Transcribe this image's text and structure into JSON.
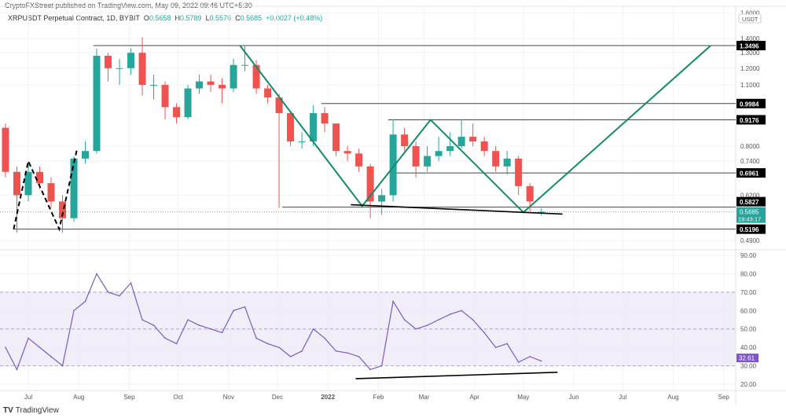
{
  "header": {
    "published": "CryptoFXStreet published on TradingView.com, May 09, 2022 09:46 UTC+5:30",
    "symbol": "XRPUSDT Perpetual Contract, 1D, BYBIT",
    "o_label": "O",
    "o": "0.5658",
    "h_label": "H",
    "h": "0.5789",
    "l_label": "L",
    "l": "0.5576",
    "c_label": "C",
    "c": "0.5685",
    "change": "+0.0027 (+0.48%)"
  },
  "footer": {
    "brand": "TradingView"
  },
  "colors": {
    "up": "#26a69a",
    "down": "#ef5350",
    "pattern": "#138a6a",
    "rsi": "#7e57c2",
    "rsi_band": "#ede7f6"
  },
  "chart_data": [
    {
      "type": "candlestick",
      "scale": "log",
      "currency": "USDT",
      "ylim": [
        0.47,
        1.65
      ],
      "ticks": [
        "1.6000",
        "1.4000",
        "1.3000",
        "1.2000",
        "1.1000",
        "0.8000",
        "0.7400",
        "0.6200",
        "0.4900"
      ],
      "tick_values": [
        1.6,
        1.4,
        1.3,
        1.2,
        1.1,
        0.8,
        0.74,
        0.62,
        0.49
      ],
      "x_weeks": [
        "2021-06-14",
        "2021-06-21",
        "2021-06-28",
        "2021-07-05",
        "2021-07-12",
        "2021-07-19",
        "2021-07-26",
        "2021-08-02",
        "2021-08-09",
        "2021-08-16",
        "2021-08-23",
        "2021-08-30",
        "2021-09-06",
        "2021-09-13",
        "2021-09-20",
        "2021-09-27",
        "2021-10-04",
        "2021-10-11",
        "2021-10-18",
        "2021-10-25",
        "2021-11-01",
        "2021-11-08",
        "2021-11-15",
        "2021-11-22",
        "2021-11-29",
        "2021-12-06",
        "2021-12-13",
        "2021-12-20",
        "2021-12-27",
        "2022-01-03",
        "2022-01-10",
        "2022-01-17",
        "2022-01-24",
        "2022-01-31",
        "2022-02-07",
        "2022-02-14",
        "2022-02-21",
        "2022-02-28",
        "2022-03-07",
        "2022-03-14",
        "2022-03-21",
        "2022-03-28",
        "2022-04-04",
        "2022-04-11",
        "2022-04-18",
        "2022-04-25",
        "2022-05-02",
        "2022-05-09"
      ],
      "open": [
        0.88,
        0.7,
        0.62,
        0.7,
        0.66,
        0.6,
        0.55,
        0.75,
        0.78,
        1.28,
        1.2,
        1.2,
        1.3,
        1.1,
        1.1,
        0.98,
        0.93,
        1.08,
        1.12,
        1.1,
        1.08,
        1.22,
        1.22,
        1.08,
        1.03,
        0.95,
        0.82,
        0.82,
        0.95,
        0.9,
        0.78,
        0.77,
        0.72,
        0.6,
        0.62,
        0.85,
        0.8,
        0.72,
        0.76,
        0.78,
        0.8,
        0.84,
        0.82,
        0.78,
        0.72,
        0.75,
        0.65,
        0.5658
      ],
      "close": [
        0.7,
        0.62,
        0.7,
        0.66,
        0.6,
        0.55,
        0.75,
        0.78,
        1.28,
        1.2,
        1.2,
        1.3,
        1.1,
        1.1,
        0.98,
        0.93,
        1.08,
        1.12,
        1.1,
        1.08,
        1.22,
        1.22,
        1.08,
        1.03,
        0.95,
        0.82,
        0.82,
        0.95,
        0.9,
        0.78,
        0.77,
        0.72,
        0.6,
        0.62,
        0.85,
        0.8,
        0.72,
        0.76,
        0.78,
        0.8,
        0.84,
        0.82,
        0.78,
        0.72,
        0.75,
        0.65,
        0.6,
        0.5685
      ],
      "high": [
        0.9,
        0.72,
        0.74,
        0.72,
        0.68,
        0.62,
        0.76,
        0.82,
        1.33,
        1.3,
        1.26,
        1.33,
        1.41,
        1.16,
        1.12,
        1.0,
        1.1,
        1.16,
        1.16,
        1.14,
        1.26,
        1.35,
        1.25,
        1.1,
        1.05,
        0.96,
        0.86,
        0.99,
        0.98,
        0.9,
        0.8,
        0.79,
        0.73,
        0.64,
        0.92,
        0.88,
        0.82,
        0.8,
        0.84,
        0.86,
        0.92,
        0.9,
        0.84,
        0.8,
        0.78,
        0.76,
        0.66,
        0.5789
      ],
      "low": [
        0.68,
        0.51,
        0.6,
        0.64,
        0.58,
        0.51,
        0.54,
        0.73,
        0.77,
        1.12,
        1.1,
        1.16,
        1.04,
        1.02,
        0.92,
        0.9,
        0.92,
        1.05,
        1.06,
        1.0,
        1.06,
        1.18,
        1.05,
        1.0,
        0.58,
        0.8,
        0.79,
        0.8,
        0.86,
        0.76,
        0.74,
        0.7,
        0.55,
        0.56,
        0.6,
        0.78,
        0.68,
        0.7,
        0.74,
        0.76,
        0.79,
        0.8,
        0.76,
        0.7,
        0.69,
        0.62,
        0.57,
        0.5576
      ],
      "levels": [
        {
          "label": "1.3496",
          "value": 1.3496,
          "from": "2021-08-10"
        },
        {
          "label": "0.9984",
          "value": 0.9984,
          "from": "2021-12-28"
        },
        {
          "label": "0.9176",
          "value": 0.9176,
          "from": "2022-02-07"
        },
        {
          "label": "0.6961",
          "value": 0.6961,
          "from": "2022-02-10"
        },
        {
          "label": "0.5827",
          "value": 0.5827,
          "from": "2021-12-04"
        },
        {
          "label": "0.5196",
          "value": 0.5196,
          "from": "2021-06-22"
        }
      ],
      "last_price": {
        "label": "0.5685",
        "countdown": "19:43:17",
        "value": 0.5685
      },
      "pattern_zigzag": [
        [
          "2021-11-08",
          1.3496
        ],
        [
          "2022-01-22",
          0.586
        ],
        [
          "2022-03-05",
          0.9176
        ],
        [
          "2022-05-01",
          0.567
        ],
        [
          "2022-08-24",
          1.3496
        ]
      ],
      "support_line": [
        [
          "2022-01-15",
          0.59
        ],
        [
          "2022-05-25",
          0.562
        ]
      ],
      "dashed_w": [
        [
          "2021-06-22",
          0.5196
        ],
        [
          "2021-07-01",
          0.74
        ],
        [
          "2021-07-20",
          0.5196
        ],
        [
          "2021-07-31",
          0.79
        ]
      ]
    },
    {
      "type": "line",
      "name": "RSI",
      "ylim": [
        15,
        95
      ],
      "ticks": [
        "90.00",
        "80.00",
        "70.00",
        "60.00",
        "50.00",
        "40.00",
        "30.00",
        "20.00"
      ],
      "tick_values": [
        90,
        80,
        70,
        60,
        50,
        40,
        30,
        20
      ],
      "band": [
        30,
        70
      ],
      "midline": 50,
      "last_label": "32.61",
      "values": [
        40,
        28,
        45,
        40,
        35,
        30,
        60,
        65,
        80,
        70,
        68,
        75,
        55,
        52,
        45,
        42,
        55,
        52,
        50,
        48,
        60,
        62,
        45,
        42,
        40,
        35,
        38,
        50,
        45,
        38,
        37,
        35,
        28,
        30,
        65,
        55,
        50,
        52,
        55,
        58,
        60,
        55,
        48,
        40,
        42,
        32,
        35,
        32.61
      ],
      "trendline": [
        [
          "2022-01-18",
          23
        ],
        [
          "2022-05-22",
          26.5
        ]
      ]
    }
  ],
  "time_axis": [
    "Jul",
    "Aug",
    "Sep",
    "Oct",
    "Nov",
    "Dec",
    "2022",
    "Feb",
    "Mar",
    "Apr",
    "May",
    "Jun",
    "Jul",
    "Aug",
    "Sep"
  ]
}
